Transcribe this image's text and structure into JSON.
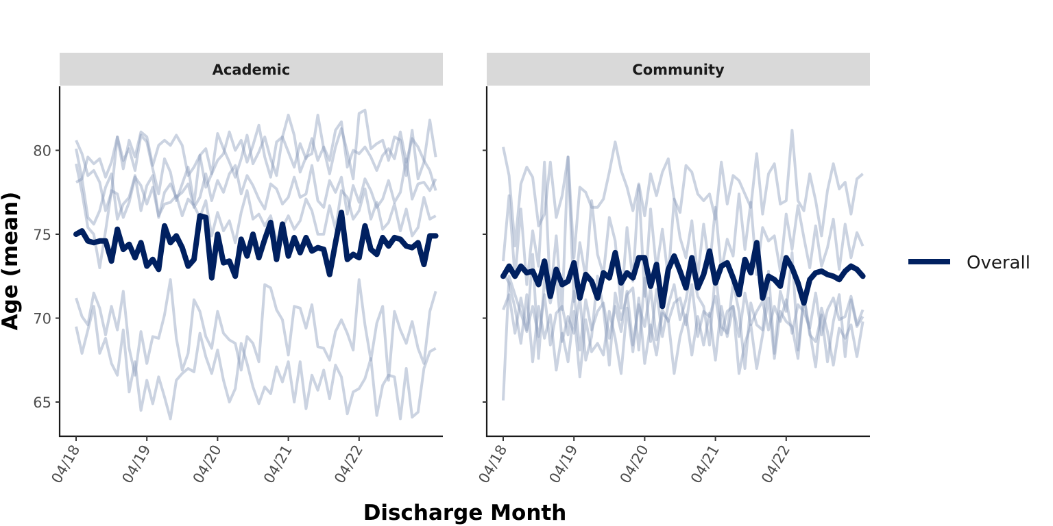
{
  "chart_data": {
    "type": "line",
    "x_axis_title": "Discharge Month",
    "y_axis_title": "Age (mean)",
    "x_tick_labels": [
      "04/18",
      "04/19",
      "04/20",
      "04/21",
      "04/22"
    ],
    "y_ticks": [
      65,
      70,
      75,
      80
    ],
    "ylim": [
      63,
      84
    ],
    "x_range_months": [
      0,
      61
    ],
    "grid": false,
    "legend": {
      "position": "right",
      "entries": [
        {
          "label": "Overall",
          "color": "#002060"
        }
      ]
    },
    "colors": {
      "overall": "#002060",
      "hospital": "#8495b8",
      "strip_bg": "#d9d9d9"
    },
    "panels": [
      {
        "title": "Academic",
        "overall": [
          75.0,
          75.2,
          74.6,
          74.5,
          74.6,
          74.6,
          73.4,
          75.3,
          74.1,
          74.4,
          73.6,
          74.5,
          73.1,
          73.5,
          72.9,
          75.5,
          74.5,
          74.9,
          74.2,
          73.1,
          73.5,
          76.1,
          76.0,
          72.4,
          75.0,
          73.3,
          73.4,
          72.5,
          74.7,
          73.7,
          75.0,
          73.6,
          74.7,
          75.7,
          73.5,
          75.6,
          73.7,
          74.8,
          73.9,
          74.8,
          74.0,
          74.2,
          74.1,
          72.6,
          74.5,
          76.3,
          73.5,
          73.8,
          73.6,
          75.5,
          74.1,
          73.8,
          74.8,
          74.3,
          74.8,
          74.7,
          74.3,
          74.2,
          74.5,
          73.2,
          74.9,
          74.9
        ],
        "hospitals": [
          [
            80.6,
            79.8,
            78.5,
            78.8,
            78.1,
            76.4,
            77.5,
            80.8,
            79.4,
            80.1,
            78.8,
            80.9,
            80.5,
            78.9,
            77.4,
            79.5,
            78.7,
            77.0,
            78.0,
            79.0,
            76.8,
            79.7,
            80.1,
            78.6,
            81.0,
            80.1,
            79.3,
            78.4,
            79.5,
            80.9,
            79.2,
            79.9,
            80.8,
            79.5,
            78.5,
            80.8,
            82.1,
            80.9,
            78.7,
            79.6,
            79.8,
            82.1,
            80.1,
            78.6,
            80.2,
            81.3,
            79.9,
            78.3,
            82.2,
            82.4,
            80.1,
            80.4,
            80.6,
            79.4,
            80.8,
            80.6,
            78.5,
            81.2,
            78.3,
            79.3,
            81.8,
            79.6
          ],
          [
            78.1,
            78.3,
            79.6,
            79.2,
            79.5,
            78.4,
            79.3,
            80.8,
            78.9,
            80.6,
            79.6,
            81.1,
            80.8,
            79.1,
            80.3,
            80.6,
            80.3,
            80.9,
            80.3,
            78.5,
            79.0,
            79.7,
            77.8,
            78.6,
            79.4,
            79.8,
            81.1,
            80.0,
            80.6,
            79.3,
            80.3,
            81.5,
            79.6,
            78.4,
            80.5,
            80.8,
            79.9,
            79.0,
            80.4,
            79.5,
            80.7,
            79.4,
            80.2,
            79.4,
            81.2,
            81.7,
            79.0,
            80.0,
            79.8,
            80.2,
            79.6,
            78.8,
            79.7,
            80.1,
            79.5,
            81.1,
            79.3,
            80.7,
            80.2,
            79.4,
            78.8,
            77.6
          ],
          [
            80.1,
            78.3,
            76.0,
            75.6,
            76.4,
            77.8,
            78.6,
            75.9,
            76.8,
            77.2,
            78.5,
            76.4,
            77.9,
            78.5,
            76.0,
            77.5,
            78.0,
            77.2,
            77.5,
            78.0,
            76.6,
            77.2,
            78.6,
            77.0,
            78.2,
            77.5,
            78.6,
            79.1,
            77.4,
            78.5,
            77.9,
            77.1,
            76.5,
            78.0,
            77.7,
            76.8,
            77.2,
            78.4,
            77.2,
            77.4,
            79.1,
            77.0,
            76.6,
            78.2,
            77.5,
            78.4,
            76.2,
            77.9,
            76.9,
            78.3,
            77.6,
            76.6,
            77.1,
            78.2,
            76.9,
            77.5,
            79.5,
            77.1,
            78.0,
            78.1,
            77.6,
            78.3
          ],
          [
            79.2,
            77.5,
            75.4,
            75.0,
            73.0,
            75.2,
            77.6,
            77.4,
            76.0,
            76.9,
            78.4,
            77.9,
            76.8,
            77.8,
            76.1,
            76.8,
            76.9,
            77.3,
            76.1,
            77.1,
            76.7,
            76.0,
            77.0,
            74.9,
            76.3,
            75.2,
            75.8,
            74.5,
            76.3,
            77.6,
            75.9,
            76.2,
            75.5,
            76.1,
            74.6,
            75.4,
            76.1,
            75.3,
            75.8,
            77.1,
            76.4,
            75.0,
            75.0,
            76.7,
            75.3,
            77.6,
            77.2,
            75.9,
            76.4,
            77.7,
            75.9,
            76.9,
            75.3,
            75.7,
            76.8,
            75.2,
            76.5,
            74.9,
            75.4,
            77.2,
            75.9,
            76.1
          ],
          [
            71.2,
            70.1,
            69.6,
            71.5,
            70.6,
            69.0,
            70.7,
            69.3,
            71.6,
            68.2,
            66.6,
            69.2,
            67.3,
            68.9,
            68.8,
            70.2,
            72.3,
            68.8,
            66.9,
            67.9,
            71.1,
            70.4,
            68.9,
            68.2,
            70.4,
            69.1,
            68.7,
            68.5,
            66.9,
            68.9,
            68.5,
            67.4,
            72.0,
            71.8,
            70.5,
            69.9,
            67.8,
            70.7,
            70.6,
            69.4,
            70.8,
            68.3,
            68.2,
            67.5,
            69.2,
            69.9,
            69.1,
            68.1,
            72.3,
            69.6,
            67.5,
            69.7,
            70.7,
            66.3,
            70.4,
            69.3,
            68.5,
            69.8,
            68.2,
            67.3,
            70.4,
            71.6
          ],
          [
            69.5,
            67.9,
            69.3,
            70.7,
            67.9,
            68.8,
            67.3,
            66.6,
            69.3,
            65.6,
            67.4,
            64.5,
            66.3,
            64.9,
            66.5,
            65.3,
            64.0,
            66.3,
            66.7,
            67.0,
            66.8,
            69.1,
            67.7,
            66.7,
            68.1,
            66.3,
            65.0,
            65.8,
            68.5,
            67.3,
            65.9,
            64.9,
            65.9,
            65.5,
            67.1,
            66.2,
            67.4,
            65.0,
            67.4,
            64.6,
            66.6,
            65.7,
            66.9,
            65.2,
            67.2,
            66.5,
            64.3,
            65.6,
            65.8,
            66.4,
            67.6,
            64.2,
            66.0,
            66.6,
            66.5,
            64.0,
            67.0,
            64.1,
            64.4,
            67.0,
            68.0,
            68.2
          ]
        ]
      },
      {
        "title": "Community",
        "overall": [
          72.5,
          73.1,
          72.5,
          73.1,
          72.7,
          72.8,
          72.0,
          73.4,
          71.3,
          72.9,
          72.0,
          72.2,
          73.3,
          71.2,
          72.6,
          72.2,
          71.2,
          72.7,
          72.4,
          73.9,
          72.1,
          72.7,
          72.4,
          73.6,
          73.6,
          71.9,
          73.2,
          70.7,
          72.9,
          73.7,
          72.8,
          71.8,
          73.6,
          71.8,
          72.6,
          74.0,
          72.1,
          73.1,
          73.3,
          72.4,
          71.4,
          73.5,
          72.7,
          74.5,
          71.2,
          72.5,
          72.3,
          71.9,
          73.6,
          73.0,
          72.1,
          70.9,
          72.3,
          72.7,
          72.8,
          72.6,
          72.5,
          72.3,
          72.8,
          73.1,
          72.9,
          72.5
        ],
        "hospitals": [
          [
            80.2,
            78.5,
            74.3,
            78.0,
            79.0,
            78.4,
            75.5,
            76.2,
            79.3,
            76.0,
            77.3,
            79.6,
            73.6,
            77.8,
            77.5,
            76.6,
            76.6,
            77.1,
            78.7,
            80.5,
            78.8,
            77.8,
            76.4,
            78.0,
            76.1,
            78.6,
            77.3,
            78.7,
            79.5,
            77.1,
            76.3,
            79.1,
            78.7,
            77.4,
            77.0,
            77.4,
            75.9,
            79.3,
            76.8,
            78.5,
            78.2,
            77.4,
            76.6,
            79.8,
            76.2,
            78.6,
            79.2,
            76.8,
            77.0,
            81.2,
            77.0,
            76.4,
            78.6,
            77.0,
            74.9,
            77.6,
            79.2,
            77.7,
            78.1,
            76.2,
            78.3,
            78.6
          ],
          [
            73.4,
            77.3,
            72.4,
            76.5,
            72.0,
            75.2,
            73.1,
            79.3,
            71.3,
            74.9,
            70.5,
            79.6,
            71.0,
            74.5,
            72.4,
            77.0,
            73.8,
            72.6,
            76.0,
            74.6,
            70.6,
            75.4,
            72.2,
            77.9,
            71.3,
            76.5,
            72.9,
            75.3,
            72.4,
            77.1,
            74.8,
            73.6,
            75.8,
            72.5,
            75.6,
            73.0,
            76.6,
            72.8,
            74.7,
            73.7,
            77.4,
            74.1,
            76.9,
            72.6,
            75.4,
            74.6,
            74.9,
            72.8,
            76.2,
            74.1,
            76.7,
            74.8,
            73.0,
            75.5,
            73.1,
            74.2,
            75.9,
            72.9,
            75.6,
            73.6,
            75.1,
            74.3
          ],
          [
            65.1,
            72.5,
            71.4,
            70.3,
            69.2,
            73.8,
            67.6,
            72.3,
            70.9,
            72.6,
            68.6,
            70.1,
            69.1,
            71.2,
            67.5,
            68.9,
            72.5,
            70.6,
            67.2,
            71.5,
            69.9,
            71.4,
            71.8,
            68.1,
            72.4,
            68.6,
            71.7,
            68.9,
            70.8,
            72.0,
            69.9,
            71.1,
            73.1,
            71.3,
            70.7,
            68.4,
            72.8,
            69.5,
            69.1,
            72.1,
            70.4,
            67.0,
            70.9,
            69.6,
            69.3,
            72.8,
            67.9,
            71.6,
            70.4,
            73.9,
            68.1,
            71.3,
            69.0,
            68.6,
            70.2,
            67.4,
            69.8,
            71.4,
            67.7,
            71.1,
            69.5,
            70.1
          ],
          [
            72.7,
            72.1,
            70.6,
            68.5,
            71.4,
            67.4,
            70.7,
            68.8,
            70.2,
            66.9,
            69.1,
            67.4,
            70.4,
            66.5,
            69.9,
            68.0,
            68.5,
            67.8,
            70.4,
            68.8,
            66.7,
            70.6,
            68.0,
            71.2,
            67.3,
            69.6,
            67.8,
            70.3,
            69.9,
            66.7,
            68.9,
            70.2,
            67.8,
            70.1,
            68.4,
            70.3,
            67.5,
            70.7,
            68.9,
            70.7,
            66.7,
            68.5,
            69.6,
            67.0,
            69.0,
            71.2,
            67.6,
            70.4,
            69.8,
            69.5,
            67.6,
            71.3,
            69.2,
            67.1,
            70.6,
            69.2,
            67.2,
            69.4,
            68.8,
            69.6,
            67.7,
            69.8
          ],
          [
            70.5,
            71.4,
            69.1,
            71.2,
            69.3,
            70.7,
            68.9,
            71.4,
            68.4,
            70.3,
            70.7,
            69.0,
            71.6,
            68.1,
            71.1,
            69.3,
            70.4,
            70.9,
            68.8,
            70.7,
            69.2,
            71.6,
            68.4,
            70.8,
            69.5,
            71.8,
            68.7,
            70.5,
            69.8,
            70.9,
            71.2,
            69.6,
            72.0,
            68.9,
            70.4,
            70.1,
            71.3,
            69.0,
            70.4,
            70.7,
            68.9,
            71.5,
            69.6,
            70.4,
            71.0,
            69.3,
            70.7,
            69.8,
            71.1,
            69.1,
            70.8,
            70.4,
            69.4,
            71.5,
            69.0,
            70.5,
            71.2,
            69.9,
            70.1,
            71.3,
            69.6,
            70.5
          ]
        ]
      }
    ]
  }
}
